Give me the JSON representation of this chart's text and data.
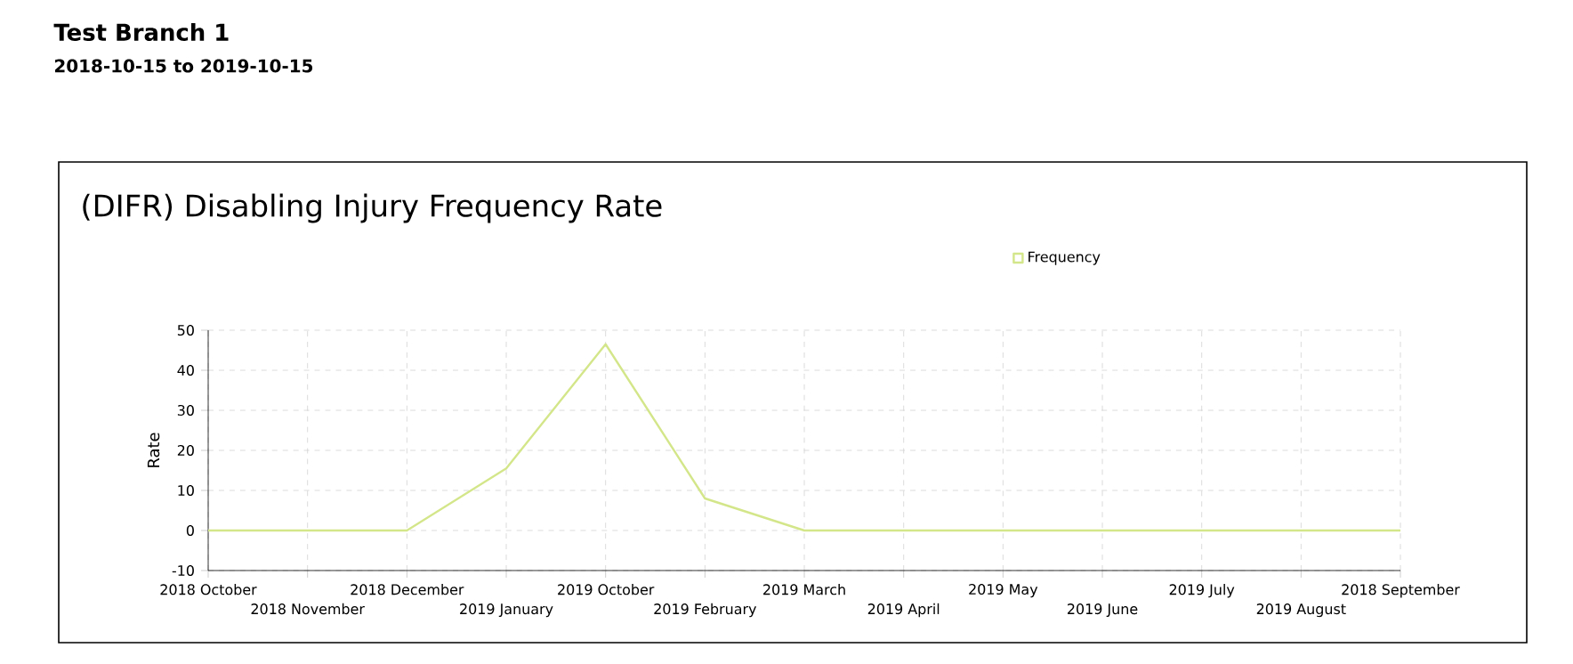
{
  "chart_data": {
    "type": "line",
    "title": "(DIFR) Disabling Injury Frequency Rate",
    "annotations": [
      "Test Branch 1",
      "2018-10-15 to 2019-10-15"
    ],
    "ylabel": "Rate",
    "categories": [
      "2018 October",
      "2018 November",
      "2018 December",
      "2019 January",
      "2019 October",
      "2019 February",
      "2019 March",
      "2019 April",
      "2019 May",
      "2019 June",
      "2019 July",
      "2019 August",
      "2018 September"
    ],
    "series": [
      {
        "name": "Frequency",
        "color": "#d4e68a",
        "values": [
          0,
          0,
          0,
          15.5,
          46.5,
          8,
          0,
          0,
          0,
          0,
          0,
          0,
          0
        ]
      }
    ],
    "ylim": [
      -10,
      50
    ],
    "yticks": [
      -10,
      0,
      10,
      20,
      30,
      40,
      50
    ],
    "grid": true,
    "legend": "top",
    "marker": "none",
    "line_style": "solid"
  }
}
